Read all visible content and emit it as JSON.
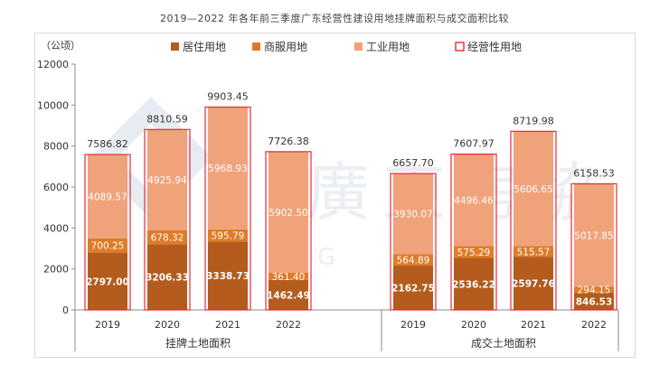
{
  "title": "2019—2022 年各年前三季度广东经营性建设用地挂牌面积与成交面积比较",
  "watermark": {
    "text": "廣東房協",
    "letter": "G"
  },
  "colors": {
    "residential": "#b35c1e",
    "commercial": "#e07b28",
    "industrial": "#f0a27a",
    "operating_outline": "#e8283a",
    "axis": "#8c8c8c",
    "text": "#333333"
  },
  "chart_data": {
    "type": "bar",
    "stacked": true,
    "y_unit_label": "（公顷）",
    "ylim": [
      0,
      12000
    ],
    "yticks": [
      0,
      2000,
      4000,
      6000,
      8000,
      10000,
      12000
    ],
    "legend_position": "top",
    "grid": false,
    "groups": [
      {
        "label": "挂牌土地面积",
        "categories": [
          "2019",
          "2020",
          "2021",
          "2022"
        ],
        "series": [
          {
            "name": "居住用地",
            "values": [
              2797.0,
              3206.33,
              3338.73,
              1462.49
            ]
          },
          {
            "name": "商服用地",
            "values": [
              700.25,
              678.32,
              595.79,
              361.4
            ]
          },
          {
            "name": "工业用地",
            "values": [
              4089.57,
              4925.94,
              5968.93,
              5902.5
            ]
          }
        ],
        "totals": [
          7586.82,
          8810.59,
          9903.45,
          7726.38
        ],
        "value_labels": {
          "居住用地": [
            "2797.00",
            "3206.33",
            "3338.73",
            "1462.49"
          ],
          "商服用地": [
            "700.25",
            "678.32",
            "595.79",
            "361.40"
          ],
          "工业用地": [
            "4089.57",
            "4925.94",
            "5968.93",
            "5902.50"
          ],
          "totals": [
            "7586.82",
            "8810.59",
            "9903.45",
            "7726.38"
          ]
        }
      },
      {
        "label": "成交土地面积",
        "categories": [
          "2019",
          "2020",
          "2021",
          "2022"
        ],
        "series": [
          {
            "name": "居住用地",
            "values": [
              2162.75,
              2536.22,
              2597.76,
              846.53
            ]
          },
          {
            "name": "商服用地",
            "values": [
              564.89,
              575.29,
              515.57,
              294.15
            ]
          },
          {
            "name": "工业用地",
            "values": [
              3930.07,
              4496.46,
              5606.65,
              5017.85
            ]
          }
        ],
        "totals": [
          6657.7,
          7607.97,
          8719.98,
          6158.53
        ],
        "value_labels": {
          "居住用地": [
            "2162.75",
            "2536.22",
            "2597.76",
            "846.53"
          ],
          "商服用地": [
            "564.89",
            "575.29",
            "515.57",
            "294.15"
          ],
          "工业用地": [
            "3930.07",
            "4496.46",
            "5606.65",
            "5017.85"
          ],
          "totals": [
            "6657.70",
            "7607.97",
            "8719.98",
            "6158.53"
          ]
        }
      }
    ],
    "legend": [
      {
        "name": "居住用地",
        "style": "residential"
      },
      {
        "name": "商服用地",
        "style": "commercial"
      },
      {
        "name": "工业用地",
        "style": "industrial"
      },
      {
        "name": "经营性用地",
        "style": "operating_outline"
      }
    ]
  }
}
